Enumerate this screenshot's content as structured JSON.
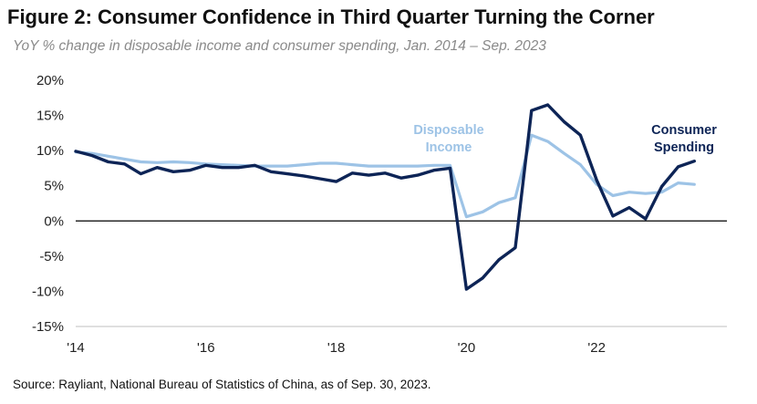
{
  "title": "Figure 2: Consumer Confidence in Third Quarter Turning the Corner",
  "subtitle": "YoY % change in disposable income and consumer spending, Jan. 2014 – Sep. 2023",
  "source": "Source: Rayliant, National Bureau of Statistics of China, as of Sep. 30, 2023.",
  "colors": {
    "disposable_income": "#9dc3e6",
    "consumer_spending": "#0d2456",
    "zero_line": "#000000",
    "axis_line": "#bfbfbf"
  },
  "chart_data": {
    "type": "line",
    "title": "Figure 2: Consumer Confidence in Third Quarter Turning the Corner",
    "subtitle": "YoY % change in disposable income and consumer spending, Jan. 2014 – Sep. 2023",
    "xlabel": "",
    "ylabel": "",
    "xlim": [
      2014.0,
      2024.0
    ],
    "ylim": [
      -15,
      20
    ],
    "y_ticks": [
      -15,
      -10,
      -5,
      0,
      5,
      10,
      15,
      20
    ],
    "y_tick_labels": [
      "-15%",
      "-10%",
      "-5%",
      "0%",
      "5%",
      "10%",
      "15%",
      "20%"
    ],
    "x_ticks": [
      2014,
      2016,
      2018,
      2020,
      2022
    ],
    "x_tick_labels": [
      "'14",
      "'16",
      "'18",
      "'20",
      "'22"
    ],
    "grid": false,
    "legend": "direct labels on lines",
    "series": [
      {
        "name": "Disposable Income",
        "label_lines": [
          "Disposable",
          "Income"
        ],
        "color": "#9dc3e6",
        "points": [
          [
            2014.0,
            9.8
          ],
          [
            2014.25,
            9.6
          ],
          [
            2014.5,
            9.2
          ],
          [
            2014.75,
            8.8
          ],
          [
            2015.0,
            8.4
          ],
          [
            2015.25,
            8.3
          ],
          [
            2015.5,
            8.4
          ],
          [
            2015.75,
            8.3
          ],
          [
            2016.0,
            8.1
          ],
          [
            2016.25,
            8.0
          ],
          [
            2016.5,
            7.9
          ],
          [
            2016.75,
            7.8
          ],
          [
            2017.0,
            7.8
          ],
          [
            2017.25,
            7.8
          ],
          [
            2017.5,
            8.0
          ],
          [
            2017.75,
            8.2
          ],
          [
            2018.0,
            8.2
          ],
          [
            2018.25,
            8.0
          ],
          [
            2018.5,
            7.8
          ],
          [
            2018.75,
            7.8
          ],
          [
            2019.0,
            7.8
          ],
          [
            2019.25,
            7.8
          ],
          [
            2019.5,
            7.9
          ],
          [
            2019.75,
            7.9
          ],
          [
            2020.0,
            0.6
          ],
          [
            2020.25,
            1.3
          ],
          [
            2020.5,
            2.6
          ],
          [
            2020.75,
            3.3
          ],
          [
            2021.0,
            12.2
          ],
          [
            2021.25,
            11.3
          ],
          [
            2021.5,
            9.6
          ],
          [
            2021.75,
            8.0
          ],
          [
            2022.0,
            5.2
          ],
          [
            2022.25,
            3.6
          ],
          [
            2022.5,
            4.1
          ],
          [
            2022.75,
            3.9
          ],
          [
            2023.0,
            4.1
          ],
          [
            2023.25,
            5.4
          ],
          [
            2023.5,
            5.2
          ]
        ]
      },
      {
        "name": "Consumer Spending",
        "label_lines": [
          "Consumer",
          "Spending"
        ],
        "color": "#0d2456",
        "points": [
          [
            2014.0,
            9.9
          ],
          [
            2014.25,
            9.3
          ],
          [
            2014.5,
            8.4
          ],
          [
            2014.75,
            8.1
          ],
          [
            2015.0,
            6.7
          ],
          [
            2015.25,
            7.6
          ],
          [
            2015.5,
            7.0
          ],
          [
            2015.75,
            7.2
          ],
          [
            2016.0,
            7.9
          ],
          [
            2016.25,
            7.6
          ],
          [
            2016.5,
            7.6
          ],
          [
            2016.75,
            7.9
          ],
          [
            2017.0,
            7.0
          ],
          [
            2017.25,
            6.7
          ],
          [
            2017.5,
            6.4
          ],
          [
            2017.75,
            6.0
          ],
          [
            2018.0,
            5.6
          ],
          [
            2018.25,
            6.8
          ],
          [
            2018.5,
            6.5
          ],
          [
            2018.75,
            6.8
          ],
          [
            2019.0,
            6.1
          ],
          [
            2019.25,
            6.5
          ],
          [
            2019.5,
            7.2
          ],
          [
            2019.75,
            7.5
          ],
          [
            2020.0,
            -9.7
          ],
          [
            2020.25,
            -8.1
          ],
          [
            2020.5,
            -5.5
          ],
          [
            2020.75,
            -3.8
          ],
          [
            2021.0,
            15.7
          ],
          [
            2021.25,
            16.5
          ],
          [
            2021.5,
            14.1
          ],
          [
            2021.75,
            12.2
          ],
          [
            2022.0,
            5.8
          ],
          [
            2022.25,
            0.7
          ],
          [
            2022.5,
            1.9
          ],
          [
            2022.75,
            0.3
          ],
          [
            2023.0,
            4.9
          ],
          [
            2023.25,
            7.7
          ],
          [
            2023.5,
            8.5
          ]
        ]
      }
    ]
  }
}
